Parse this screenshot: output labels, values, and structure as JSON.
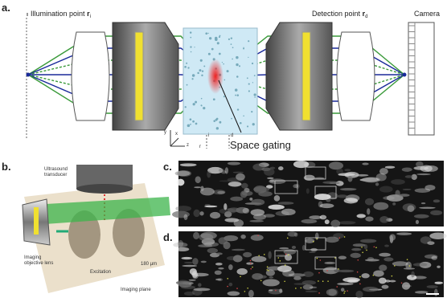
{
  "panel_a": {
    "label": "a.",
    "illumination_label": "Illumination point",
    "illumination_symbol": "r",
    "illumination_subscript": "i",
    "detection_label": "Detection point",
    "detection_symbol": "r",
    "detection_subscript": "d",
    "camera": "Camera",
    "space_gating": "Space gating",
    "axis_y": "y",
    "axis_x": "x",
    "axis_z": "z",
    "marker_r": "r",
    "marker_i": "i",
    "marker_d": "d"
  },
  "panel_b": {
    "label": "b.",
    "transducer": [
      "Ultrasound",
      "transducer"
    ],
    "objective": [
      "Imaging",
      "objective lens"
    ],
    "excitation": "Excitation",
    "scale": "180 µm",
    "imaging_plane": "Imaging plane"
  },
  "panel_c": {
    "label": "c."
  },
  "panel_d": {
    "label": "d."
  }
}
